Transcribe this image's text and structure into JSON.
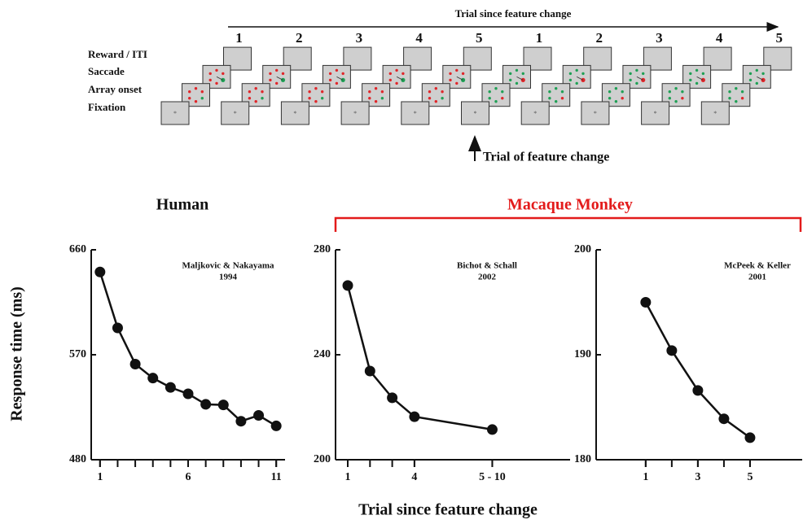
{
  "diagram": {
    "title": "Trial since feature change",
    "trial_numbers": [
      "1",
      "2",
      "3",
      "4",
      "5",
      "1",
      "2",
      "3",
      "4",
      "5"
    ],
    "stage_labels": [
      "Reward / ITI",
      "Saccade",
      "Array onset",
      "Fixation"
    ],
    "annotation": "Trial of feature change"
  },
  "group_label": "Macaque Monkey",
  "ylabel": "Response time (ms)",
  "xlabel": "Trial since feature change",
  "chart_data": [
    {
      "type": "line",
      "title": "Human",
      "annotation": [
        "Maljkovic & Nakayama",
        "1994"
      ],
      "x": [
        1,
        2,
        3,
        4,
        5,
        6,
        7,
        8,
        9,
        10,
        11
      ],
      "values": [
        641,
        593,
        562,
        550,
        542,
        536.5,
        527.5,
        527,
        513,
        518,
        509
      ],
      "color": "#111111",
      "xlim": [
        0.5,
        11.5
      ],
      "xticks": [
        1,
        6,
        11
      ],
      "ylim": [
        480,
        660
      ],
      "yticks": [
        480,
        570,
        660
      ]
    },
    {
      "type": "line",
      "annotation": [
        "Bichot & Schall",
        "2002"
      ],
      "x": [
        1,
        2,
        3,
        4,
        7.5
      ],
      "values": [
        266.4,
        233.8,
        223.6,
        216.4,
        211.5
      ],
      "color": "#111111",
      "xlim": [
        0.45,
        11
      ],
      "xticks": [
        1,
        4,
        {
          "value": 7.5,
          "label": "5 - 10"
        }
      ],
      "ylim": [
        200,
        280
      ],
      "yticks": [
        200,
        240,
        280
      ]
    },
    {
      "type": "line",
      "annotation": [
        "McPeek & Keller",
        "2001"
      ],
      "x": [
        1,
        2,
        3,
        4,
        5
      ],
      "values": [
        195,
        190.4,
        186.6,
        183.9,
        182.1
      ],
      "color": "#111111",
      "xlim": [
        -0.9,
        7
      ],
      "xticks": [
        1,
        3,
        5
      ],
      "ylim": [
        180,
        200
      ],
      "yticks": [
        180,
        190,
        200
      ]
    }
  ]
}
